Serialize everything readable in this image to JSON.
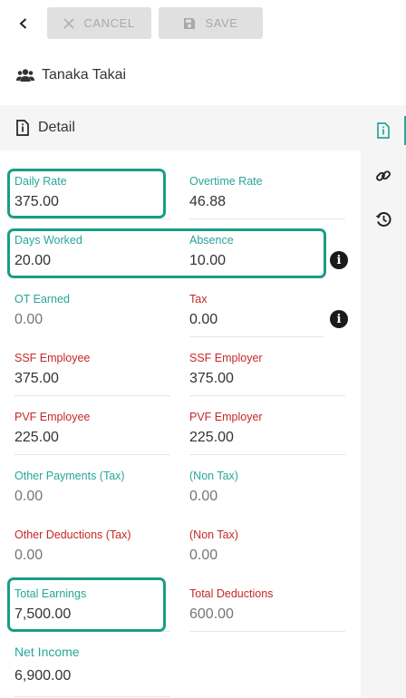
{
  "toolbar": {
    "cancel_label": "CANCEL",
    "save_label": "SAVE"
  },
  "person": {
    "name": "Tanaka Takai"
  },
  "section": {
    "title": "Detail"
  },
  "sidebar": {
    "icons": [
      "info-file-icon",
      "link-icon",
      "history-icon"
    ],
    "active_color": "#26a69a"
  },
  "fields": {
    "daily_rate": {
      "label": "Daily Rate",
      "value": "375.00"
    },
    "overtime_rate": {
      "label": "Overtime Rate",
      "value": "46.88"
    },
    "days_worked": {
      "label": "Days Worked",
      "value": "20.00"
    },
    "absence": {
      "label": "Absence",
      "value": "10.00"
    },
    "ot_earned": {
      "label": "OT Earned",
      "value": "0.00"
    },
    "tax": {
      "label": "Tax",
      "value": "0.00"
    },
    "ssf_employee": {
      "label": "SSF Employee",
      "value": "375.00"
    },
    "ssf_employer": {
      "label": "SSF Employer",
      "value": "375.00"
    },
    "pvf_employee": {
      "label": "PVF Employee",
      "value": "225.00"
    },
    "pvf_employer": {
      "label": "PVF Employer",
      "value": "225.00"
    },
    "other_payments_tax": {
      "label": "Other Payments (Tax)",
      "value": "0.00"
    },
    "other_payments_non_tax": {
      "label": "(Non Tax)",
      "value": "0.00"
    },
    "other_deductions_tax": {
      "label": "Other Deductions (Tax)",
      "value": "0.00"
    },
    "other_deductions_non_tax": {
      "label": "(Non Tax)",
      "value": "0.00"
    },
    "total_earnings": {
      "label": "Total Earnings",
      "value": "7,500.00"
    },
    "total_deductions": {
      "label": "Total Deductions",
      "value": "600.00"
    },
    "net_income": {
      "label": "Net Income",
      "value": "6,900.00"
    }
  },
  "colors": {
    "teal_label": "#26a69a",
    "red_label": "#c62828",
    "highlight_border": "#1a9e85"
  }
}
